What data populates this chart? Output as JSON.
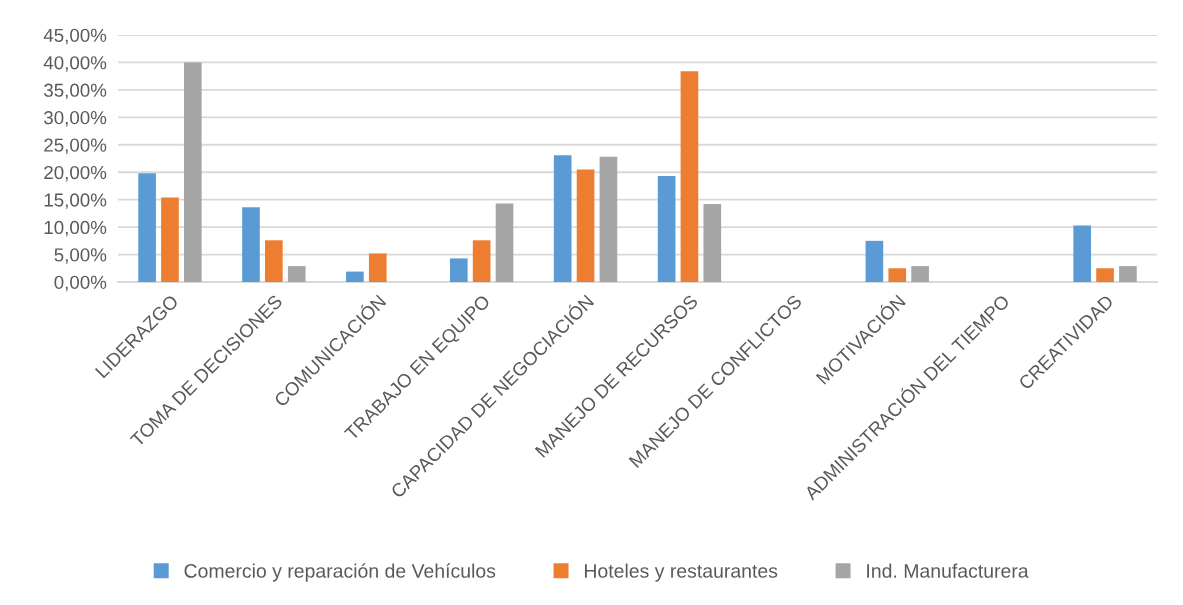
{
  "chart_data": {
    "type": "bar",
    "categories": [
      "LIDERAZGO",
      "TOMA DE DECISIONES",
      "COMUNICACIÓN",
      "TRABAJO EN EQUIPO",
      "CAPACIDAD DE NEGOCIACIÓN",
      "MANEJO DE RECURSOS",
      "MANEJO DE CONFLICTOS",
      "MOTIVACIÓN",
      "ADMINISTRACIÓN DEL TIEMPO",
      "CREATIVIDAD"
    ],
    "series": [
      {
        "name": "Comercio y reparación de Vehículos",
        "color": "#5b9bd5",
        "values": [
          19.8,
          13.6,
          1.9,
          4.3,
          23.1,
          19.3,
          0,
          7.5,
          0,
          10.3
        ]
      },
      {
        "name": "Hoteles y restaurantes",
        "color": "#ed7d31",
        "values": [
          15.4,
          7.6,
          5.2,
          7.6,
          20.5,
          38.4,
          0,
          2.5,
          0,
          2.5
        ]
      },
      {
        "name": "Ind. Manufacturera",
        "color": "#a5a5a5",
        "values": [
          40.0,
          2.9,
          0,
          14.3,
          22.8,
          14.2,
          0,
          2.9,
          0,
          2.9
        ]
      }
    ],
    "ylim": [
      0,
      45
    ],
    "yticks": [
      {
        "value": 0,
        "label": "0,00%"
      },
      {
        "value": 5,
        "label": "5,00%"
      },
      {
        "value": 10,
        "label": "10,00%"
      },
      {
        "value": 15,
        "label": "15,00%"
      },
      {
        "value": 20,
        "label": "20,00%"
      },
      {
        "value": 25,
        "label": "25,00%"
      },
      {
        "value": 30,
        "label": "30,00%"
      },
      {
        "value": 35,
        "label": "35,00%"
      },
      {
        "value": 40,
        "label": "40,00%"
      },
      {
        "value": 45,
        "label": "45,00%"
      }
    ],
    "grid": "y",
    "legend": "bottom"
  }
}
